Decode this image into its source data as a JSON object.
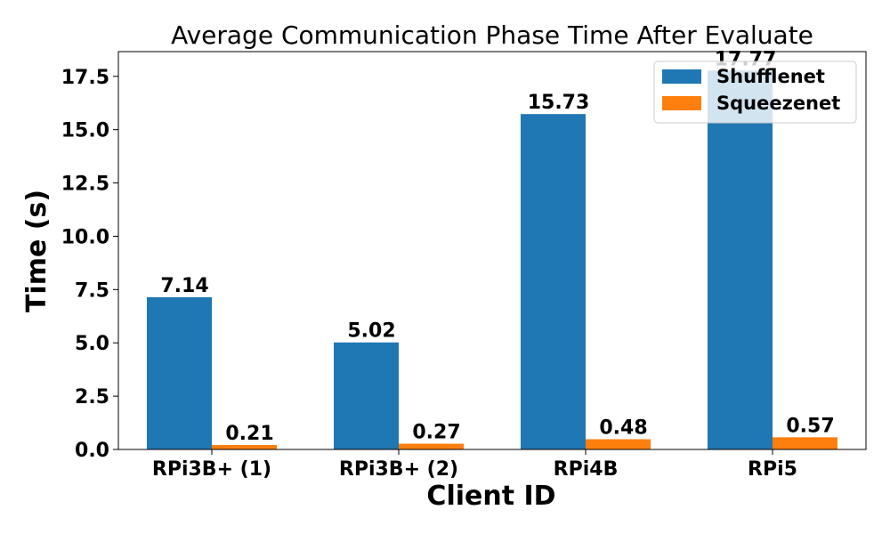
{
  "chart_data": {
    "type": "bar",
    "title": "Average Communication Phase Time After Evaluate",
    "xlabel": "Client ID",
    "ylabel": "Time (s)",
    "categories": [
      "RPi3B+ (1)",
      "RPi3B+ (2)",
      "RPi4B",
      "RPi5"
    ],
    "series": [
      {
        "name": "Shufflenet",
        "values": [
          7.14,
          5.02,
          15.73,
          17.77
        ],
        "labels": [
          "7.14",
          "5.02",
          "15.73",
          "17.77"
        ],
        "color": "#1f77b4"
      },
      {
        "name": "Squeezenet",
        "values": [
          0.21,
          0.27,
          0.48,
          0.57
        ],
        "labels": [
          "0.21",
          "0.27",
          "0.48",
          "0.57"
        ],
        "color": "#ff7f0e"
      }
    ],
    "yticks": [
      0.0,
      2.5,
      5.0,
      7.5,
      10.0,
      12.5,
      15.0,
      17.5
    ],
    "ytick_labels": [
      "0.0",
      "2.5",
      "5.0",
      "7.5",
      "10.0",
      "12.5",
      "15.0",
      "17.5"
    ],
    "ylim": [
      0,
      18.66
    ],
    "grid": false,
    "legend_position": "top-right"
  }
}
